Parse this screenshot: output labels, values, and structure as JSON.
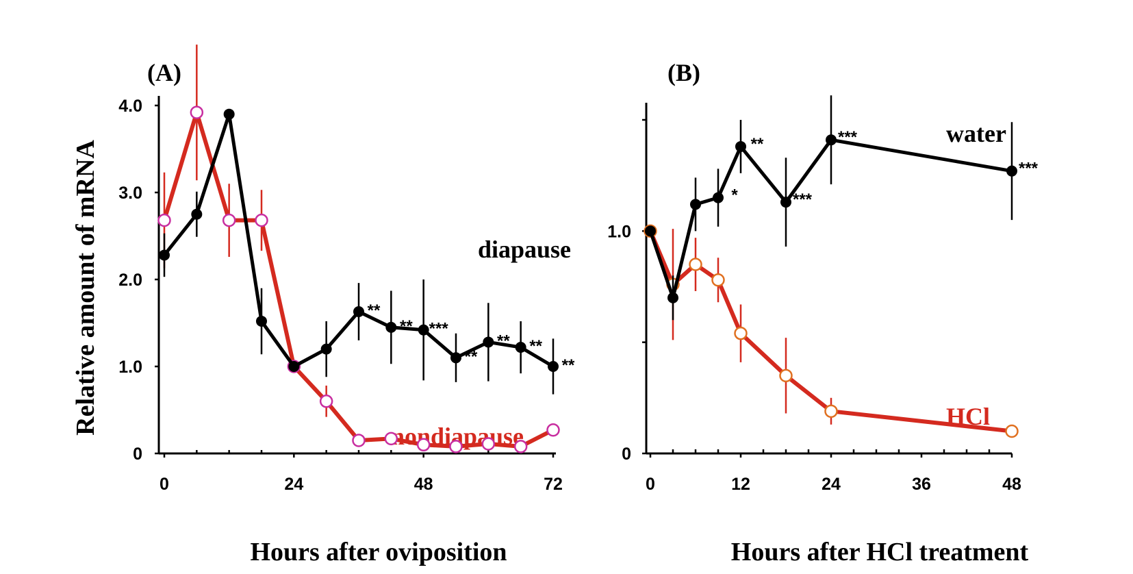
{
  "colors": {
    "diapause": "#000000",
    "nondiapause": "#d42a1f",
    "open_marker_edge_A": "#c82ea0",
    "open_marker_edge_B": "#e07020",
    "axis": "#000000"
  },
  "y_axis_title": "Relative amount of mRNA",
  "chart_data": [
    {
      "id": "A",
      "panel_label": "(A)",
      "type": "line",
      "xlabel": "Hours after oviposition",
      "ylabel": "Relative amount of mRNA",
      "xlim": [
        0,
        72
      ],
      "ylim": [
        0,
        4.0
      ],
      "xticks": [
        0,
        24,
        48,
        72
      ],
      "xtick_labels": [
        "0",
        "24",
        "48",
        "72"
      ],
      "yticks": [
        0,
        1.0,
        2.0,
        3.0,
        4.0
      ],
      "ytick_labels": [
        "0",
        "1.0",
        "2.0",
        "3.0",
        "4.0"
      ],
      "series": [
        {
          "key": "diapause",
          "name": "diapause",
          "marker": "filled",
          "x": [
            0,
            6,
            12,
            18,
            24,
            30,
            36,
            42,
            48,
            54,
            60,
            66,
            72
          ],
          "y": [
            2.28,
            2.75,
            3.9,
            1.52,
            1.0,
            1.2,
            1.63,
            1.45,
            1.42,
            1.1,
            1.28,
            1.22,
            1.0
          ],
          "err": [
            0.25,
            0.26,
            0.0,
            0.38,
            0.0,
            0.32,
            0.33,
            0.42,
            0.58,
            0.28,
            0.45,
            0.3,
            0.32
          ],
          "sig": [
            "",
            "",
            "",
            "",
            "",
            "",
            "**",
            "**",
            "***",
            "**",
            "**",
            "**",
            "**"
          ]
        },
        {
          "key": "nondiapause",
          "name": "nondiapause",
          "marker": "open",
          "x": [
            0,
            6,
            12,
            18,
            24,
            30,
            36,
            42,
            48,
            54,
            60,
            66,
            72
          ],
          "y": [
            2.68,
            3.92,
            2.68,
            2.68,
            1.0,
            0.6,
            0.15,
            0.17,
            0.1,
            0.08,
            0.11,
            0.08,
            0.27
          ],
          "err": [
            0.55,
            0.78,
            0.42,
            0.35,
            0.0,
            0.18,
            0.0,
            0.0,
            0.0,
            0.0,
            0.0,
            0.0,
            0.0
          ],
          "sig": []
        }
      ]
    },
    {
      "id": "B",
      "panel_label": "(B)",
      "type": "line",
      "xlabel": "Hours after HCl treatment",
      "ylabel": "",
      "xlim": [
        0,
        48
      ],
      "ylim": [
        0,
        1.5
      ],
      "xticks": [
        0,
        12,
        24,
        36,
        48
      ],
      "xtick_labels": [
        "0",
        "12",
        "24",
        "36",
        "48"
      ],
      "minor_xticks": [
        3,
        6,
        9,
        15,
        18,
        21,
        27,
        30,
        33,
        39,
        42,
        45
      ],
      "yticks": [
        0,
        0.5,
        1.0,
        1.5
      ],
      "ytick_labels": [
        "0",
        "",
        "1.0",
        ""
      ],
      "series": [
        {
          "key": "water",
          "name": "water",
          "marker": "filled",
          "x": [
            0,
            3,
            6,
            9,
            12,
            18,
            24,
            48
          ],
          "y": [
            1.0,
            0.7,
            1.12,
            1.15,
            1.38,
            1.13,
            1.41,
            1.27
          ],
          "err": [
            0.0,
            0.1,
            0.12,
            0.13,
            0.12,
            0.2,
            0.2,
            0.22
          ],
          "sig": [
            "",
            "",
            "",
            "*",
            "**",
            "***",
            "***",
            "***"
          ]
        },
        {
          "key": "hcl",
          "name": "HCl",
          "marker": "open",
          "x": [
            0,
            3,
            6,
            9,
            12,
            18,
            24,
            48
          ],
          "y": [
            1.0,
            0.76,
            0.85,
            0.78,
            0.54,
            0.35,
            0.19,
            0.1
          ],
          "err": [
            0.0,
            0.25,
            0.12,
            0.1,
            0.13,
            0.17,
            0.06,
            0.0
          ],
          "sig": []
        }
      ]
    }
  ]
}
